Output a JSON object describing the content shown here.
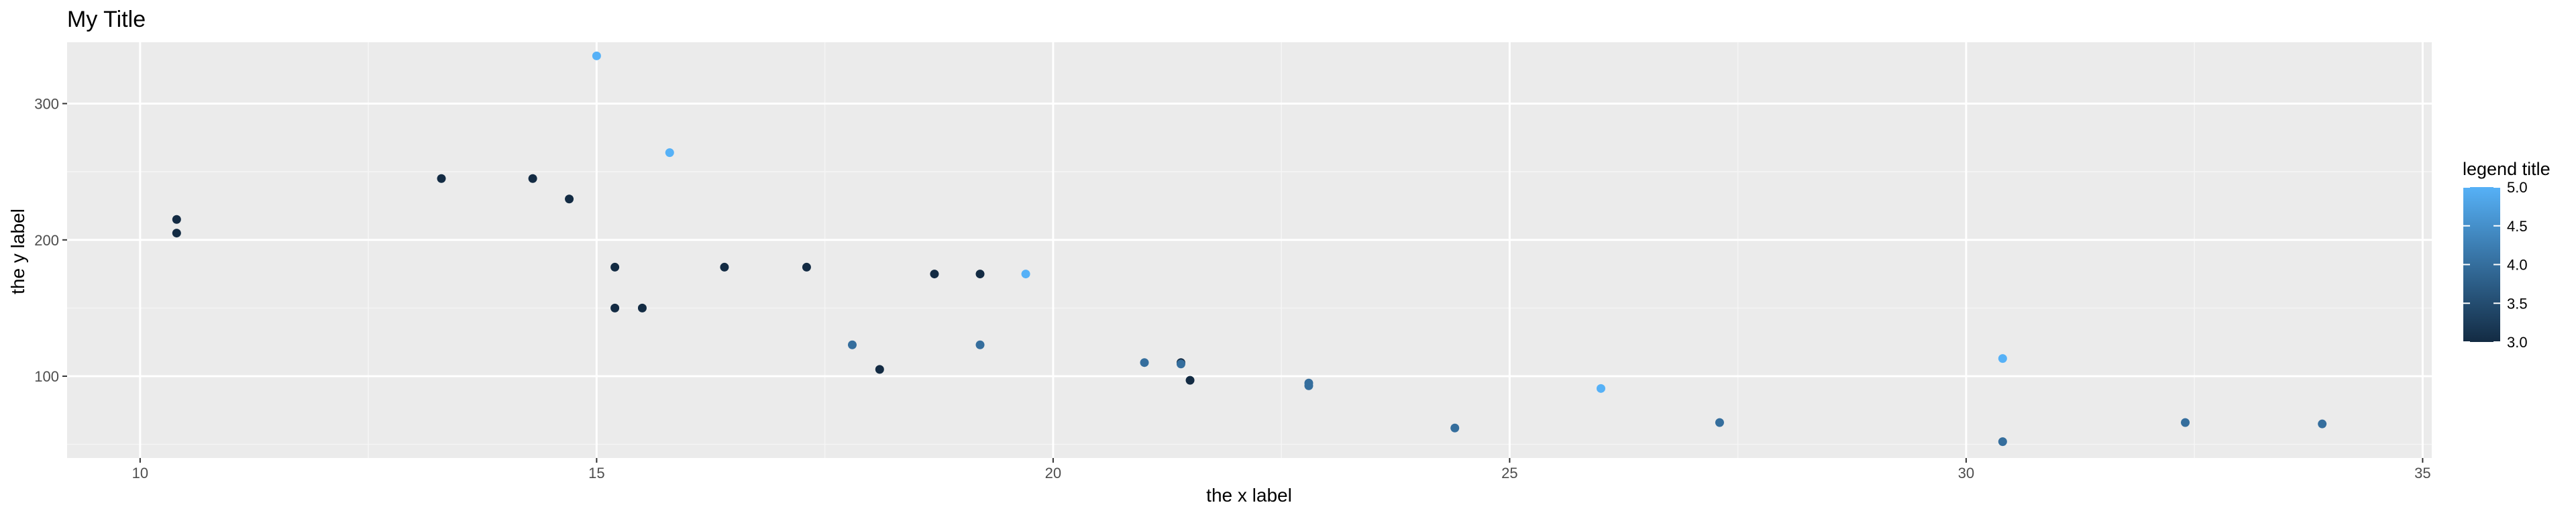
{
  "chart_data": {
    "type": "scatter",
    "title": "My Title",
    "xlabel": "the x label",
    "ylabel": "the y label",
    "xlim": [
      9.2,
      35.1
    ],
    "ylim": [
      40,
      345
    ],
    "x_ticks": [
      10,
      15,
      20,
      25,
      30,
      35
    ],
    "y_ticks": [
      100,
      200,
      300
    ],
    "grid": true,
    "legend": {
      "title": "legend title",
      "position": "right",
      "min": 3.0,
      "max": 5.0,
      "ticks": [
        "3.0",
        "3.5",
        "4.0",
        "4.5",
        "5.0"
      ],
      "low_color": "#132B43",
      "high_color": "#56B1F7"
    },
    "points": [
      {
        "x": 10.4,
        "y": 205,
        "c": 3
      },
      {
        "x": 10.4,
        "y": 215,
        "c": 3
      },
      {
        "x": 13.3,
        "y": 245,
        "c": 3
      },
      {
        "x": 14.3,
        "y": 245,
        "c": 3
      },
      {
        "x": 14.7,
        "y": 230,
        "c": 3
      },
      {
        "x": 15.0,
        "y": 335,
        "c": 5
      },
      {
        "x": 15.2,
        "y": 180,
        "c": 3
      },
      {
        "x": 15.2,
        "y": 150,
        "c": 3
      },
      {
        "x": 15.5,
        "y": 150,
        "c": 3
      },
      {
        "x": 15.8,
        "y": 264,
        "c": 5
      },
      {
        "x": 16.4,
        "y": 180,
        "c": 3
      },
      {
        "x": 17.3,
        "y": 180,
        "c": 3
      },
      {
        "x": 17.8,
        "y": 123,
        "c": 4
      },
      {
        "x": 18.1,
        "y": 105,
        "c": 3
      },
      {
        "x": 18.7,
        "y": 175,
        "c": 3
      },
      {
        "x": 19.2,
        "y": 175,
        "c": 3
      },
      {
        "x": 19.2,
        "y": 123,
        "c": 4
      },
      {
        "x": 19.7,
        "y": 175,
        "c": 5
      },
      {
        "x": 21.0,
        "y": 110,
        "c": 4
      },
      {
        "x": 21.4,
        "y": 110,
        "c": 3
      },
      {
        "x": 21.4,
        "y": 109,
        "c": 4
      },
      {
        "x": 21.5,
        "y": 97,
        "c": 3
      },
      {
        "x": 22.8,
        "y": 93,
        "c": 4
      },
      {
        "x": 22.8,
        "y": 95,
        "c": 4
      },
      {
        "x": 24.4,
        "y": 62,
        "c": 4
      },
      {
        "x": 26.0,
        "y": 91,
        "c": 5
      },
      {
        "x": 27.3,
        "y": 66,
        "c": 4
      },
      {
        "x": 30.4,
        "y": 113,
        "c": 5
      },
      {
        "x": 30.4,
        "y": 52,
        "c": 4
      },
      {
        "x": 32.4,
        "y": 66,
        "c": 4
      },
      {
        "x": 33.9,
        "y": 65,
        "c": 4
      }
    ]
  }
}
